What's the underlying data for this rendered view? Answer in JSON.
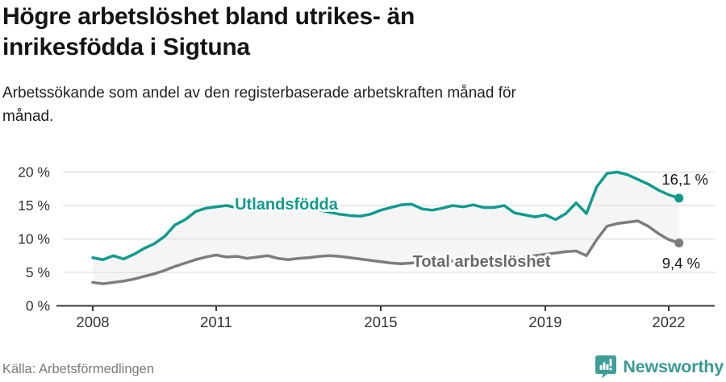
{
  "header": {
    "title_lines": [
      "Högre arbetslöshet bland utrikes- än",
      "inrikesfödda i Sigtuna"
    ],
    "subtitle_lines": [
      "Arbetssökande som andel av den registerbaserade arbetskraften månad för",
      "månad."
    ]
  },
  "footer": {
    "source": "Källa: Arbetsförmedlingen",
    "brand": "Newsworthy"
  },
  "colors": {
    "teal_line": "#109b8d",
    "gray_line": "#7d7d81",
    "gray_label": "#69696e",
    "area_fill": "#f5f5f5",
    "grid": "#e3e3e3",
    "axis": "#3a3a3a",
    "tick_text": "#333333",
    "value_text": "#161616",
    "brand_teal": "#3a9b94"
  },
  "chart_data": {
    "type": "line",
    "title": "Högre arbetslöshet bland utrikes- än inrikesfödda i Sigtuna",
    "subtitle": "Arbetssökande som andel av den registerbaserade arbetskraften månad för månad.",
    "xlabel": "",
    "ylabel": "",
    "xlim": [
      2008,
      2022.3
    ],
    "ylim": [
      0,
      21
    ],
    "grid": true,
    "area_fill_between_series": true,
    "x": [
      2008,
      2008.25,
      2008.5,
      2008.75,
      2009,
      2009.25,
      2009.5,
      2009.75,
      2010,
      2010.25,
      2010.5,
      2010.75,
      2011,
      2011.25,
      2011.5,
      2011.75,
      2012,
      2012.25,
      2012.5,
      2012.75,
      2013,
      2013.25,
      2013.5,
      2013.75,
      2014,
      2014.25,
      2014.5,
      2014.75,
      2015,
      2015.25,
      2015.5,
      2015.75,
      2016,
      2016.25,
      2016.5,
      2016.75,
      2017,
      2017.25,
      2017.5,
      2017.75,
      2018,
      2018.25,
      2018.5,
      2018.75,
      2019,
      2019.25,
      2019.5,
      2019.75,
      2020,
      2020.25,
      2020.5,
      2020.75,
      2021,
      2021.25,
      2021.5,
      2021.75,
      2022,
      2022.25
    ],
    "series": [
      {
        "name": "Utlandsfödda",
        "color": "#109b8d",
        "label_color": "#109b8d",
        "end_label": "16,1 %",
        "values": [
          7.2,
          6.9,
          7.5,
          7.0,
          7.7,
          8.6,
          9.3,
          10.4,
          12.1,
          12.9,
          14.1,
          14.6,
          14.8,
          15.0,
          14.7,
          14.9,
          15.1,
          14.9,
          14.6,
          14.8,
          14.5,
          14.6,
          14.3,
          14.0,
          13.7,
          13.5,
          13.4,
          13.7,
          14.3,
          14.7,
          15.1,
          15.2,
          14.5,
          14.3,
          14.6,
          15.0,
          14.8,
          15.1,
          14.7,
          14.7,
          15.0,
          13.9,
          13.6,
          13.3,
          13.6,
          12.9,
          13.8,
          15.4,
          13.8,
          17.8,
          19.8,
          20.0,
          19.6,
          18.9,
          18.2,
          17.3,
          16.6,
          16.1
        ]
      },
      {
        "name": "Total arbetslöshet",
        "color": "#7d7d81",
        "label_color": "#69696e",
        "end_label": "9,4 %",
        "values": [
          3.5,
          3.3,
          3.5,
          3.7,
          4.0,
          4.4,
          4.8,
          5.3,
          5.9,
          6.4,
          6.9,
          7.3,
          7.6,
          7.3,
          7.4,
          7.1,
          7.3,
          7.5,
          7.1,
          6.9,
          7.1,
          7.2,
          7.4,
          7.5,
          7.4,
          7.2,
          7.0,
          6.8,
          6.6,
          6.4,
          6.3,
          6.4,
          6.5,
          6.4,
          6.6,
          6.7,
          6.8,
          7.0,
          7.1,
          7.2,
          7.3,
          7.2,
          7.3,
          7.5,
          7.7,
          7.9,
          8.1,
          8.2,
          7.5,
          9.9,
          11.9,
          12.3,
          12.5,
          12.7,
          11.9,
          10.8,
          9.9,
          9.4
        ]
      }
    ],
    "xticks": [
      {
        "value": 2008,
        "label": "2008"
      },
      {
        "value": 2011,
        "label": "2011"
      },
      {
        "value": 2015,
        "label": "2015"
      },
      {
        "value": 2019,
        "label": "2019"
      },
      {
        "value": 2022,
        "label": "2022"
      }
    ],
    "yticks": [
      {
        "value": 0,
        "label": "0 %"
      },
      {
        "value": 5,
        "label": "5 %"
      },
      {
        "value": 10,
        "label": "10 %"
      },
      {
        "value": 15,
        "label": "15 %"
      },
      {
        "value": 20,
        "label": "20 %"
      }
    ],
    "legend_position": "inline-labels"
  }
}
